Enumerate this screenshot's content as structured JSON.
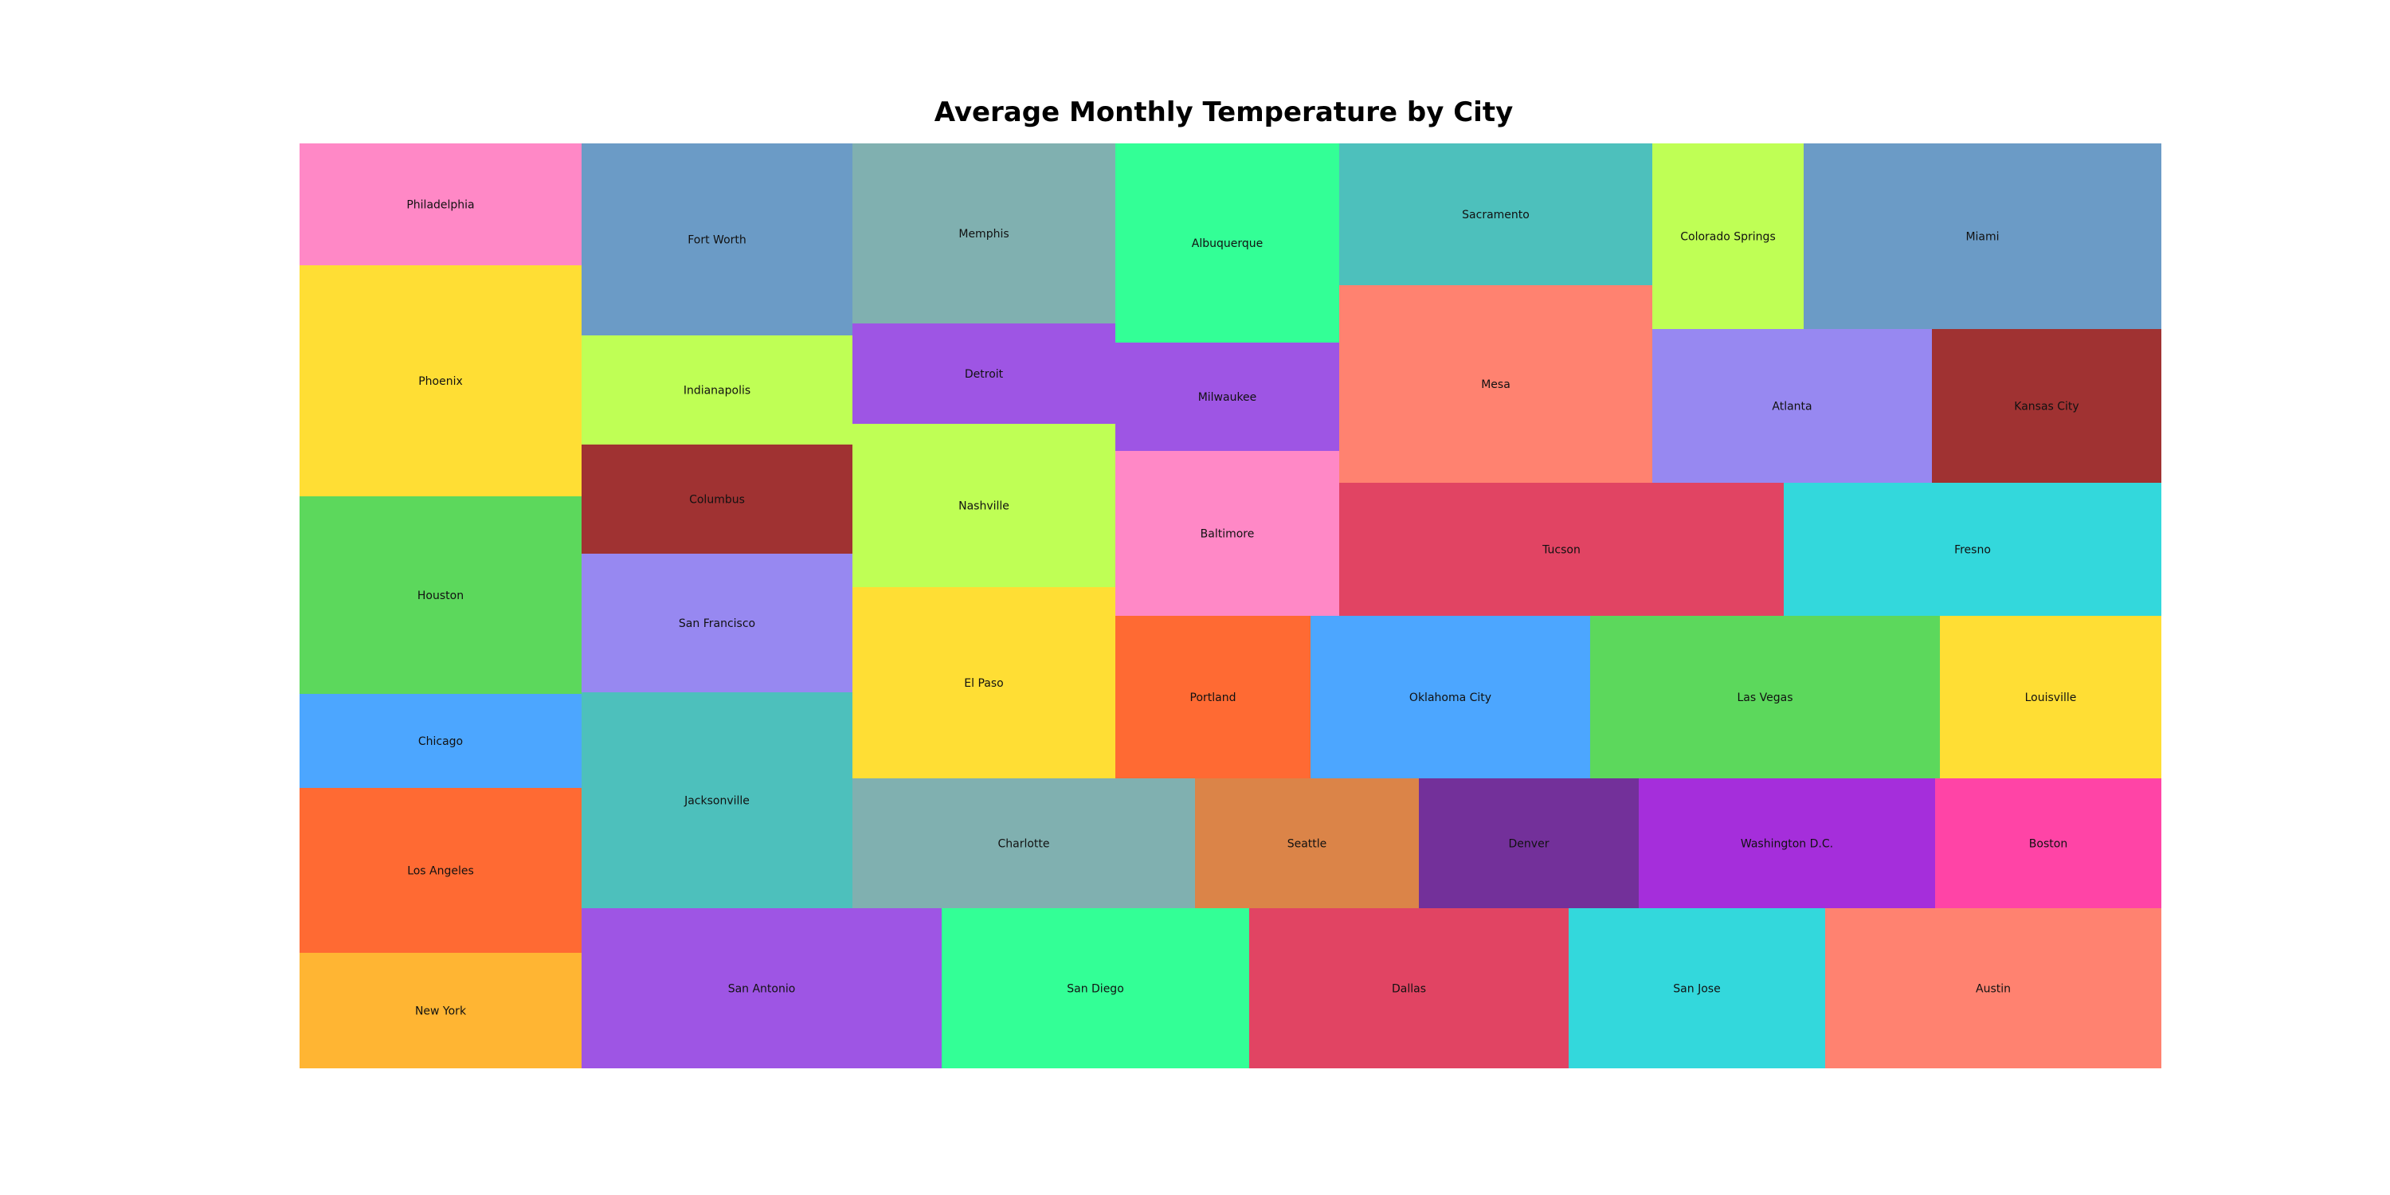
{
  "chart_data": {
    "type": "treemap",
    "title": "Average Monthly Temperature by City",
    "columns": [
      {
        "cities": [
          {
            "name": "Philadelphia",
            "color": "#ff88c6"
          },
          {
            "name": "Phoenix",
            "color": "#ffde34"
          },
          {
            "name": "Houston",
            "color": "#5cd85c"
          },
          {
            "name": "Chicago",
            "color": "#4ca6ff"
          },
          {
            "name": "Los Angeles",
            "color": "#ff6a33"
          },
          {
            "name": "New York",
            "color": "#ffb533"
          }
        ]
      },
      {
        "cities": [
          {
            "name": "Fort Worth",
            "color": "#6b9bc6"
          },
          {
            "name": "Indianapolis",
            "color": "#bfff55"
          },
          {
            "name": "Columbus",
            "color": "#a03232"
          },
          {
            "name": "San Francisco",
            "color": "#9788f1"
          },
          {
            "name": "Jacksonville",
            "color": "#4dc0bc"
          }
        ]
      },
      {
        "cities": [
          {
            "name": "Memphis",
            "color": "#80b0b0"
          },
          {
            "name": "Detroit",
            "color": "#9e55e4"
          },
          {
            "name": "Nashville",
            "color": "#bfff55"
          },
          {
            "name": "El Paso",
            "color": "#ffde34"
          }
        ]
      },
      {
        "cities": [
          {
            "name": "Albuquerque",
            "color": "#33ff96"
          },
          {
            "name": "Milwaukee",
            "color": "#9e55e4"
          },
          {
            "name": "Baltimore",
            "color": "#ff88c6"
          }
        ]
      },
      {
        "cities": [
          {
            "name": "Sacramento",
            "color": "#4dc0bc"
          },
          {
            "name": "Mesa",
            "color": "#ff8270"
          }
        ]
      },
      {
        "cities": [
          {
            "name": "Colorado Springs",
            "color": "#bfff55"
          },
          {
            "name": "Miami",
            "color": "#6b9bc6"
          },
          {
            "name": "Atlanta",
            "color": "#9788f1"
          },
          {
            "name": "Kansas City",
            "color": "#a03232"
          }
        ]
      },
      {
        "cities": [
          {
            "name": "Tucson",
            "color": "#e14463"
          },
          {
            "name": "Fresno",
            "color": "#33d8dc"
          }
        ]
      },
      {
        "cities": [
          {
            "name": "Portland",
            "color": "#ff6a33"
          },
          {
            "name": "Oklahoma City",
            "color": "#4ca6ff"
          },
          {
            "name": "Las Vegas",
            "color": "#5cd85c"
          },
          {
            "name": "Louisville",
            "color": "#ffde34"
          }
        ]
      },
      {
        "cities": [
          {
            "name": "Charlotte",
            "color": "#80b0b0"
          },
          {
            "name": "Seattle",
            "color": "#db8448"
          },
          {
            "name": "Denver",
            "color": "#73309a"
          },
          {
            "name": "Washington D.C.",
            "color": "#a52edb"
          },
          {
            "name": "Boston",
            "color": "#ff44a6"
          }
        ]
      },
      {
        "cities": [
          {
            "name": "San Antonio",
            "color": "#9e55e4"
          },
          {
            "name": "San Diego",
            "color": "#33ff96"
          },
          {
            "name": "Dallas",
            "color": "#e14463"
          },
          {
            "name": "San Jose",
            "color": "#33d8dc"
          },
          {
            "name": "Austin",
            "color": "#ff8270"
          }
        ]
      }
    ]
  }
}
